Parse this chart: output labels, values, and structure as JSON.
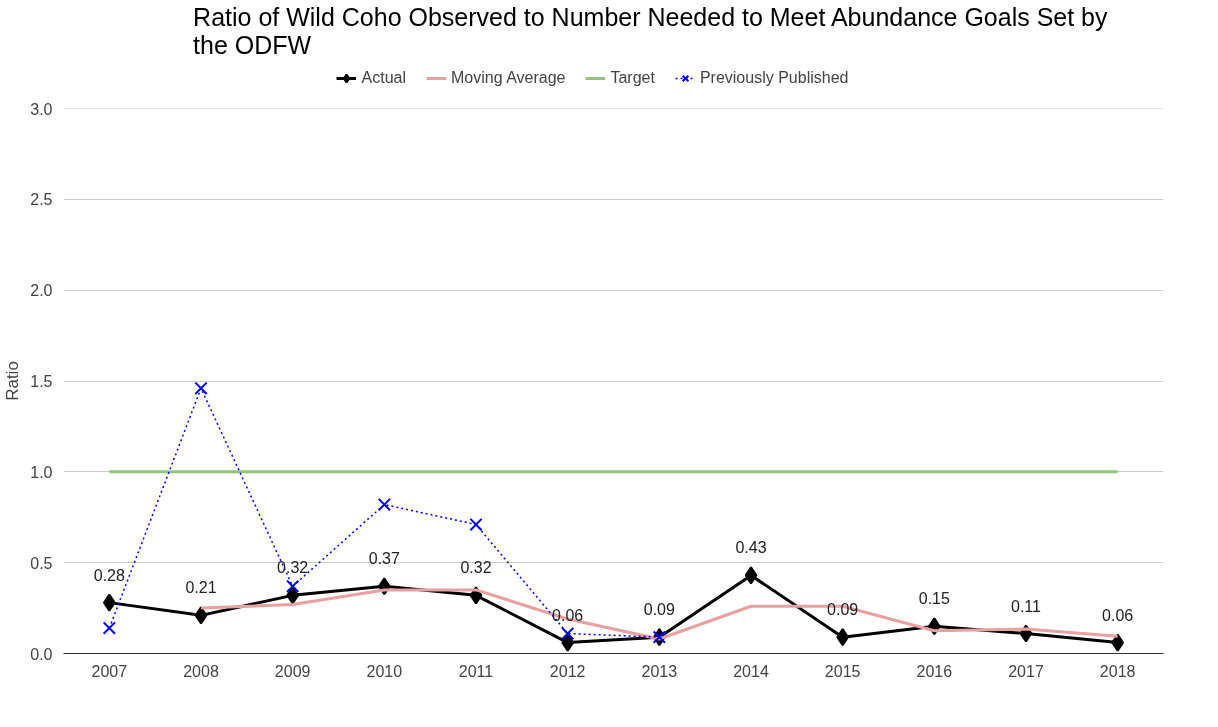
{
  "chart_data": {
    "type": "line",
    "title": "Ratio of Wild Coho Observed to Number Needed to Meet Abundance Goals Set by the ODFW",
    "ylabel": "Ratio",
    "categories": [
      "2007",
      "2008",
      "2009",
      "2010",
      "2011",
      "2012",
      "2013",
      "2014",
      "2015",
      "2016",
      "2017",
      "2018"
    ],
    "series": [
      {
        "name": "Actual",
        "color": "#000000",
        "marker": "diamond",
        "line_style": "solid",
        "values": [
          0.28,
          0.21,
          0.32,
          0.37,
          0.32,
          0.06,
          0.09,
          0.43,
          0.09,
          0.15,
          0.11,
          0.06
        ],
        "value_labels": [
          "0.28",
          "0.21",
          "0.32",
          "0.37",
          "0.32",
          "0.06",
          "0.09",
          "0.43",
          "0.09",
          "0.15",
          "0.11",
          "0.06"
        ]
      },
      {
        "name": "Moving Average",
        "color": "#e8a0a0",
        "marker": "none",
        "line_style": "solid",
        "values": [
          null,
          0.25,
          0.27,
          0.35,
          0.35,
          0.19,
          0.08,
          0.26,
          0.26,
          0.125,
          0.135,
          0.095
        ]
      },
      {
        "name": "Target",
        "color": "#93c47d",
        "marker": "none",
        "line_style": "solid",
        "values": [
          1,
          1,
          1,
          1,
          1,
          1,
          1,
          1,
          1,
          1,
          1,
          1
        ]
      },
      {
        "name": "Previously Published",
        "color": "#0000ff",
        "marker": "cross",
        "line_style": "dotted",
        "values": [
          0.14,
          1.46,
          0.37,
          0.82,
          0.71,
          0.11,
          0.09,
          null,
          null,
          null,
          null,
          null
        ]
      }
    ],
    "ylim": [
      0,
      3
    ],
    "yticks": [
      "0.0",
      "0.5",
      "1.0",
      "1.5",
      "2.0",
      "2.5",
      "3.0"
    ],
    "grid": "y",
    "legend": "top"
  }
}
